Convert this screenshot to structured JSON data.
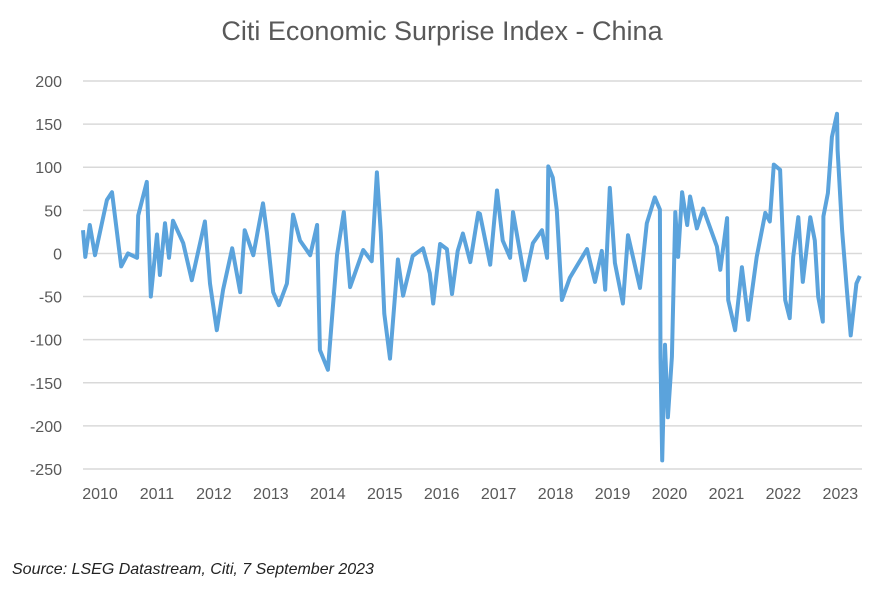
{
  "chart_data": {
    "type": "line",
    "title": "Citi Economic Surprise Index - China",
    "xlabel": "",
    "ylabel": "",
    "ylim": [
      -250,
      200
    ],
    "yticks": [
      200,
      150,
      100,
      50,
      0,
      -50,
      -100,
      -150,
      -200,
      -250
    ],
    "xticks": [
      "2010",
      "2011",
      "2012",
      "2013",
      "2014",
      "2015",
      "2016",
      "2017",
      "2018",
      "2019",
      "2020",
      "2021",
      "2022",
      "2023"
    ],
    "grid": true,
    "legend": "none",
    "line_color": "#5ba3dc",
    "series": [
      {
        "x": [
          2010.0,
          2010.04,
          2010.12,
          2010.21,
          2010.42,
          2010.51,
          2010.67,
          2010.79,
          2010.95,
          2010.97,
          2011.12,
          2011.19,
          2011.3,
          2011.35,
          2011.44,
          2011.51,
          2011.58,
          2011.76,
          2011.91,
          2012.14,
          2012.23,
          2012.35,
          2012.46,
          2012.62,
          2012.76,
          2012.84,
          2012.99,
          2013.16,
          2013.23,
          2013.34,
          2013.44,
          2013.58,
          2013.69,
          2013.81,
          2013.99,
          2014.11,
          2014.16,
          2014.3,
          2014.46,
          2014.58,
          2014.69,
          2014.92,
          2015.07,
          2015.16,
          2015.23,
          2015.29,
          2015.39,
          2015.53,
          2015.62,
          2015.79,
          2015.97,
          2016.09,
          2016.15,
          2016.27,
          2016.39,
          2016.48,
          2016.58,
          2016.67,
          2016.8,
          2016.94,
          2016.97,
          2017.15,
          2017.27,
          2017.37,
          2017.5,
          2017.55,
          2017.76,
          2017.9,
          2018.06,
          2018.15,
          2018.17,
          2018.25,
          2018.32,
          2018.41,
          2018.55,
          2018.85,
          2018.99,
          2019.11,
          2019.17,
          2019.25,
          2019.34,
          2019.48,
          2019.57,
          2019.78,
          2019.9,
          2020.04,
          2020.13,
          2020.14,
          2020.17,
          2020.22,
          2020.27,
          2020.34,
          2020.4,
          2020.45,
          2020.52,
          2020.61,
          2020.66,
          2020.78,
          2020.89,
          2021.13,
          2021.19,
          2021.31,
          2021.33,
          2021.45,
          2021.57,
          2021.68,
          2021.83,
          2021.98,
          2022.06,
          2022.13,
          2022.24,
          2022.33,
          2022.41,
          2022.47,
          2022.56,
          2022.64,
          2022.77,
          2022.85,
          2022.91,
          2022.99,
          2023.0,
          2023.08,
          2023.15,
          2023.24,
          2023.25,
          2023.33,
          2023.41,
          2023.48,
          2023.58,
          2023.64
        ],
        "values": [
          27,
          -4,
          33,
          -2,
          62,
          71,
          -15,
          0,
          -5,
          44,
          83,
          -50,
          22,
          -25,
          35,
          -5,
          38,
          12,
          -31,
          37,
          -35,
          -89,
          -42,
          6,
          -45,
          27,
          -2,
          58,
          24,
          -45,
          -60,
          -35,
          45,
          15,
          -2,
          33,
          -112,
          -135,
          -2,
          48,
          -39,
          4,
          -9,
          94,
          24,
          -70,
          -122,
          -7,
          -49,
          -3,
          6,
          -23,
          -58,
          11,
          5,
          -47,
          3,
          23,
          -10,
          47,
          46,
          -13,
          73,
          15,
          -5,
          48,
          -31,
          12,
          27,
          -5,
          101,
          88,
          50,
          -54,
          -28,
          5,
          -33,
          3,
          -42,
          76,
          -11,
          -58,
          21,
          -40,
          35,
          65,
          51,
          -120,
          -240,
          -106,
          -190,
          -120,
          48,
          -4,
          71,
          33,
          66,
          29,
          52,
          8,
          -19,
          41,
          -54,
          -89,
          -16,
          -77,
          -4,
          47,
          37,
          103,
          97,
          -54,
          -75,
          -4,
          42,
          -33,
          42,
          15,
          -50,
          -79,
          43,
          70,
          135,
          162,
          120,
          27,
          -40,
          -95,
          -35,
          -26
        ]
      }
    ]
  },
  "source": "Source: LSEG Datastream, Citi, 7 September 2023"
}
